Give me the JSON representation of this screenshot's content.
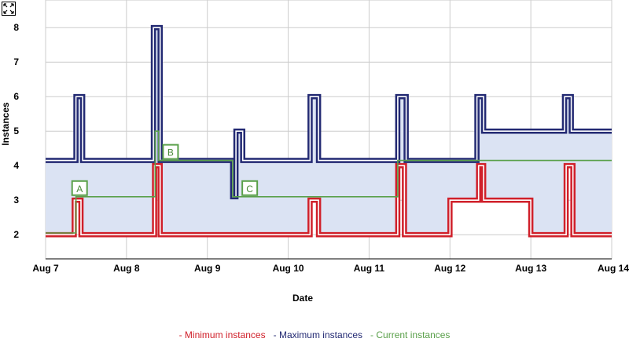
{
  "toolbar": {
    "expand_icon": "expand-arrows-icon"
  },
  "chart_data": {
    "type": "line",
    "title": "",
    "xlabel": "Date",
    "ylabel": "Instances",
    "x_ticks": [
      "Aug 7",
      "Aug 8",
      "Aug 9",
      "Aug 10",
      "Aug 11",
      "Aug 12",
      "Aug 13",
      "Aug 14"
    ],
    "y_ticks": [
      2,
      3,
      4,
      5,
      6,
      7,
      8
    ],
    "xlim": [
      "2024-08-07T00:00",
      "2024-08-14T00:00"
    ],
    "ylim": [
      1.3,
      8.8
    ],
    "step": true,
    "grid": true,
    "legend_position": "bottom",
    "series": [
      {
        "name": "Minimum instances",
        "color": "#d0202a",
        "points": [
          [
            "2024-08-07T00:00",
            2
          ],
          [
            "2024-08-07T08:30",
            3
          ],
          [
            "2024-08-07T10:30",
            2
          ],
          [
            "2024-08-08T08:20",
            4
          ],
          [
            "2024-08-08T10:00",
            2
          ],
          [
            "2024-08-10T06:30",
            3
          ],
          [
            "2024-08-10T09:00",
            2
          ],
          [
            "2024-08-11T08:30",
            4
          ],
          [
            "2024-08-11T10:30",
            2
          ],
          [
            "2024-08-12T00:00",
            3
          ],
          [
            "2024-08-12T08:30",
            4
          ],
          [
            "2024-08-12T10:00",
            3
          ],
          [
            "2024-08-13T00:00",
            2
          ],
          [
            "2024-08-13T10:30",
            4
          ],
          [
            "2024-08-13T12:30",
            2
          ],
          [
            "2024-08-14T00:00",
            2
          ]
        ]
      },
      {
        "name": "Maximum instances",
        "color": "#232a73",
        "points": [
          [
            "2024-08-07T00:00",
            4.15
          ],
          [
            "2024-08-07T09:00",
            6
          ],
          [
            "2024-08-07T11:00",
            4.15
          ],
          [
            "2024-08-08T08:00",
            8
          ],
          [
            "2024-08-08T10:00",
            4.15
          ],
          [
            "2024-08-09T07:30",
            3.1
          ],
          [
            "2024-08-09T08:30",
            5
          ],
          [
            "2024-08-09T10:30",
            4.15
          ],
          [
            "2024-08-10T06:30",
            6
          ],
          [
            "2024-08-10T09:00",
            4.15
          ],
          [
            "2024-08-11T08:30",
            6
          ],
          [
            "2024-08-11T11:00",
            4.15
          ],
          [
            "2024-08-12T08:00",
            6
          ],
          [
            "2024-08-12T10:00",
            5
          ],
          [
            "2024-08-13T10:00",
            6
          ],
          [
            "2024-08-13T12:00",
            5
          ],
          [
            "2024-08-14T00:00",
            5
          ]
        ]
      },
      {
        "name": "Current instances",
        "color": "#5aa04a",
        "points": [
          [
            "2024-08-07T00:00",
            2.05
          ],
          [
            "2024-08-07T09:00",
            3.1
          ],
          [
            "2024-08-08T08:30",
            5
          ],
          [
            "2024-08-08T09:30",
            4.15
          ],
          [
            "2024-08-09T07:30",
            3.1
          ],
          [
            "2024-08-11T08:30",
            4.15
          ],
          [
            "2024-08-14T00:00",
            4.15
          ]
        ]
      }
    ],
    "annotations": [
      {
        "label": "A",
        "x": "2024-08-07T09:30",
        "y": 3.1
      },
      {
        "label": "B",
        "x": "2024-08-08T12:30",
        "y": 4.15
      },
      {
        "label": "C",
        "x": "2024-08-09T12:00",
        "y": 3.1
      }
    ],
    "legend": [
      {
        "text": "- Minimum instances",
        "color": "#d0202a"
      },
      {
        "text": "- Maximum instances",
        "color": "#232a73"
      },
      {
        "text": "- Current instances",
        "color": "#5aa04a"
      }
    ]
  }
}
